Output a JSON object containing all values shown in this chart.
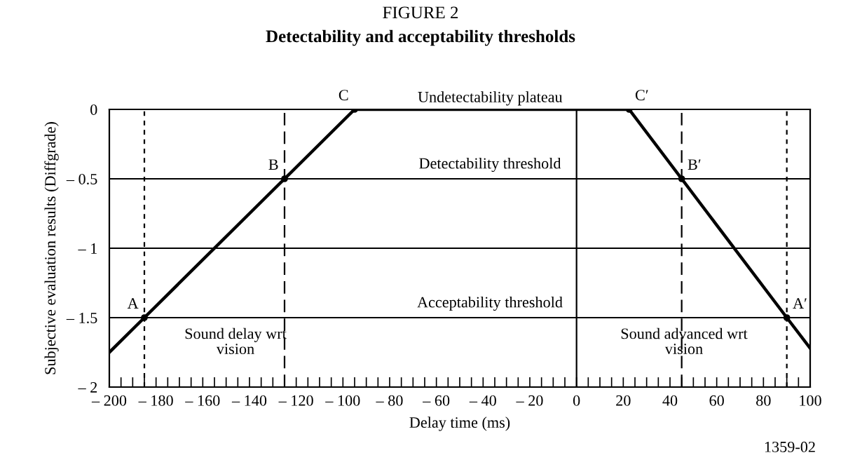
{
  "chart_data": {
    "type": "line",
    "title": "FIGURE 2",
    "subtitle": "Detectability and acceptability thresholds",
    "xlabel": "Delay time (ms)",
    "ylabel": "Subjective evaluation results (Diffgrade)",
    "x": [
      -200,
      -185,
      -125,
      -95,
      22.5,
      45,
      90,
      100
    ],
    "series": [
      {
        "color": "#000000",
        "values": [
          -1.75,
          -1.5,
          -0.5,
          0,
          0,
          -0.5,
          -1.5,
          -1.72
        ]
      }
    ],
    "xlim": [
      -200,
      100
    ],
    "ylim": [
      -2,
      0
    ],
    "xticks": [
      {
        "value": -200,
        "label": "– 200"
      },
      {
        "value": -195,
        "label": null
      },
      {
        "value": -190,
        "label": null
      },
      {
        "value": -185,
        "label": null
      },
      {
        "value": -180,
        "label": "– 180"
      },
      {
        "value": -175,
        "label": null
      },
      {
        "value": -170,
        "label": null
      },
      {
        "value": -165,
        "label": null
      },
      {
        "value": -160,
        "label": "– 160"
      },
      {
        "value": -155,
        "label": null
      },
      {
        "value": -150,
        "label": null
      },
      {
        "value": -145,
        "label": null
      },
      {
        "value": -140,
        "label": "– 140"
      },
      {
        "value": -135,
        "label": null
      },
      {
        "value": -130,
        "label": null
      },
      {
        "value": -125,
        "label": null
      },
      {
        "value": -120,
        "label": "– 120"
      },
      {
        "value": -115,
        "label": null
      },
      {
        "value": -110,
        "label": null
      },
      {
        "value": -105,
        "label": null
      },
      {
        "value": -100,
        "label": "– 100"
      },
      {
        "value": -95,
        "label": null
      },
      {
        "value": -90,
        "label": null
      },
      {
        "value": -85,
        "label": null
      },
      {
        "value": -80,
        "label": "– 80"
      },
      {
        "value": -75,
        "label": null
      },
      {
        "value": -70,
        "label": null
      },
      {
        "value": -65,
        "label": null
      },
      {
        "value": -60,
        "label": "– 60"
      },
      {
        "value": -55,
        "label": null
      },
      {
        "value": -50,
        "label": null
      },
      {
        "value": -45,
        "label": null
      },
      {
        "value": -40,
        "label": "– 40"
      },
      {
        "value": -35,
        "label": null
      },
      {
        "value": -30,
        "label": null
      },
      {
        "value": -25,
        "label": null
      },
      {
        "value": -20,
        "label": "– 20"
      },
      {
        "value": -15,
        "label": null
      },
      {
        "value": -10,
        "label": null
      },
      {
        "value": -5,
        "label": null
      },
      0,
      {
        "value": 5,
        "label": null
      },
      {
        "value": 10,
        "label": null
      },
      {
        "value": 15,
        "label": null
      },
      20,
      {
        "value": 25,
        "label": null
      },
      {
        "value": 30,
        "label": null
      },
      {
        "value": 35,
        "label": null
      },
      40,
      {
        "value": 45,
        "label": null
      },
      {
        "value": 50,
        "label": null
      },
      {
        "value": 55,
        "label": null
      },
      60,
      {
        "value": 65,
        "label": null
      },
      {
        "value": 70,
        "label": null
      },
      {
        "value": 75,
        "label": null
      },
      80,
      {
        "value": 85,
        "label": null
      },
      {
        "value": 90,
        "label": null
      },
      {
        "value": 95,
        "label": null
      },
      100
    ],
    "yticks": [
      {
        "value": -2,
        "label": "– 2"
      },
      {
        "value": -1.5,
        "label": "– 1.5"
      },
      {
        "value": -1,
        "label": "– 1"
      },
      {
        "value": -0.5,
        "label": "– 0.5"
      },
      0
    ],
    "grid": false,
    "marker": "circle",
    "line_style": "solid",
    "ref_lines": [
      {
        "axis": "y",
        "value": -0.5,
        "label": "Detectability threshold"
      },
      {
        "axis": "y",
        "value": -1.5,
        "label": "Acceptability threshold"
      },
      {
        "axis": "y",
        "value": -1
      },
      {
        "axis": "x",
        "value": 0
      },
      {
        "axis": "x",
        "value": -185,
        "line_style": "dotted"
      },
      {
        "axis": "x",
        "value": -125,
        "line_style": "dashed"
      },
      {
        "axis": "x",
        "value": 45,
        "line_style": "dashed"
      },
      {
        "axis": "x",
        "value": 90,
        "line_style": "dotted"
      }
    ],
    "annotations": [
      {
        "text": "A",
        "x": -185,
        "y": -1.5
      },
      {
        "text": "B",
        "x": -125,
        "y": -0.5
      },
      {
        "text": "C",
        "x": -95,
        "y": 0
      },
      {
        "text": "C′",
        "x": 22.5,
        "y": 0
      },
      {
        "text": "B′",
        "x": 45,
        "y": -0.5
      },
      {
        "text": "A′",
        "x": 90,
        "y": -1.5
      },
      {
        "text": "Undetectability plateau",
        "x": -37,
        "y": 0
      },
      "Sound delay wrt\nvision",
      "Sound advanced wrt\nvision",
      "1359-02"
    ]
  }
}
